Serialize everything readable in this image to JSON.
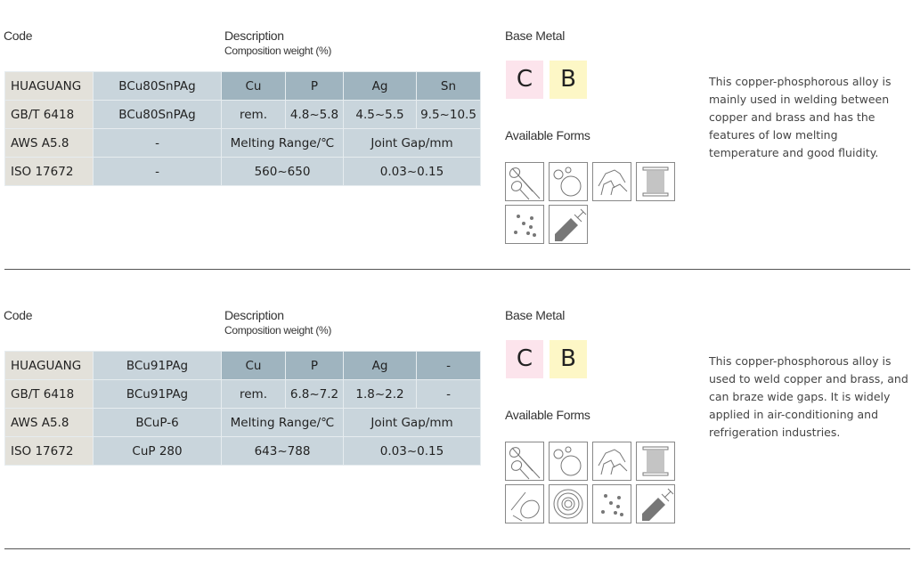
{
  "products": [
    {
      "code_label": "Code",
      "description_label": "Description",
      "composition_label": "Composition weight (%)",
      "rows": [
        [
          "HUAGUANG",
          "BCu80SnPAg",
          "Cu",
          "P",
          "Ag",
          "Sn"
        ],
        [
          "GB/T 6418",
          "BCu80SnPAg",
          "rem.",
          "4.8~5.8",
          "4.5~5.5",
          "9.5~10.5"
        ],
        [
          "AWS A5.8",
          "-",
          "Melting Range/℃",
          "Joint Gap/mm"
        ],
        [
          "ISO 17672",
          "-",
          "560~650",
          "0.03~0.15"
        ]
      ],
      "base_metal_label": "Base Metal",
      "base_metals": [
        {
          "letter": "C",
          "color": "#fce4ec"
        },
        {
          "letter": "B",
          "color": "#fdf7c6"
        }
      ],
      "forms_label": "Available Forms",
      "forms": [
        "rod-icon",
        "ring-icon",
        "preform-icon",
        "wire-spool-icon",
        "powder-icon",
        "paste-syringe-icon"
      ],
      "text": "This copper-phosphorous alloy is mainly used in welding between copper and brass and has the features of low melting temperature and good fluidity."
    },
    {
      "code_label": "Code",
      "description_label": "Description",
      "composition_label": "Composition weight (%)",
      "rows": [
        [
          "HUAGUANG",
          "BCu91PAg",
          "Cu",
          "P",
          "Ag",
          "-"
        ],
        [
          "GB/T 6418",
          "BCu91PAg",
          "rem.",
          "6.8~7.2",
          "1.8~2.2",
          "-"
        ],
        [
          "AWS A5.8",
          "BCuP-6",
          "Melting Range/℃",
          "Joint Gap/mm"
        ],
        [
          "ISO 17672",
          "CuP 280",
          "643~788",
          "0.03~0.15"
        ]
      ],
      "base_metal_label": "Base Metal",
      "base_metals": [
        {
          "letter": "C",
          "color": "#fce4ec"
        },
        {
          "letter": "B",
          "color": "#fdf7c6"
        }
      ],
      "forms_label": "Available Forms",
      "forms": [
        "rod-icon",
        "ring-icon",
        "preform-icon",
        "wire-spool-icon",
        "coil-icon",
        "foil-ring-icon",
        "powder-icon",
        "paste-syringe-icon"
      ],
      "text": "This copper-phosphorous alloy is used to weld copper and brass, and can braze wide gaps. It is widely applied in air-conditioning and refrigeration industries."
    }
  ]
}
